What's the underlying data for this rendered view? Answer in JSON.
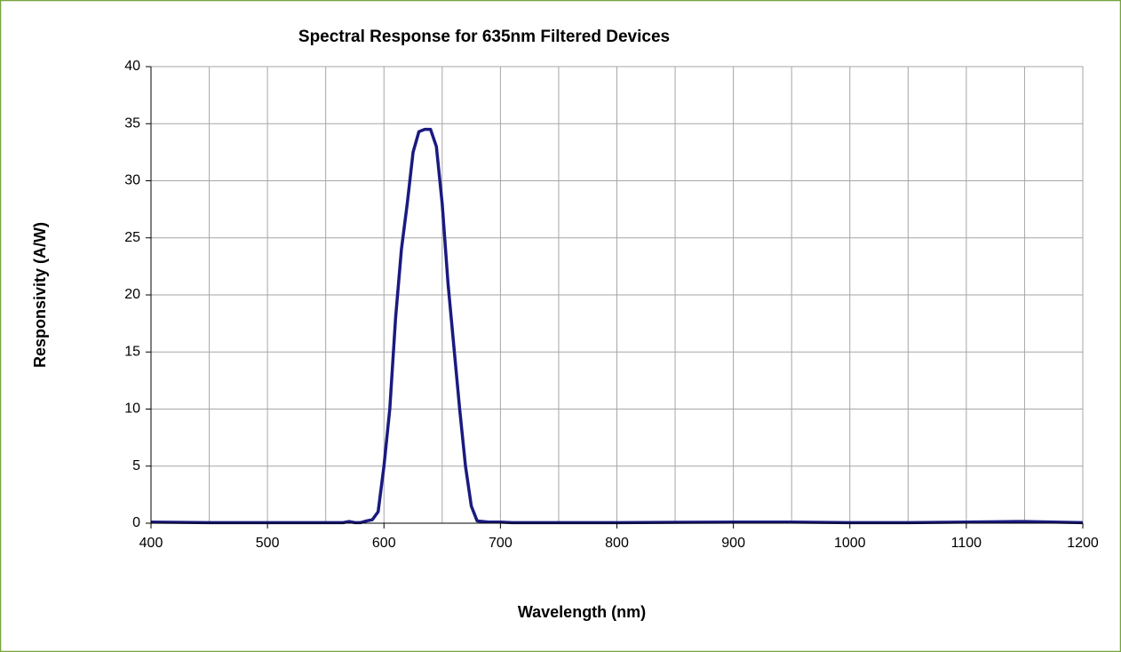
{
  "chart_data": {
    "type": "line",
    "title": "Spectral Response for 635nm Filtered Devices",
    "x_label": "Wavelength (nm)",
    "y_label": "Responsivity (A/W)",
    "x": [
      400,
      450,
      500,
      550,
      565,
      570,
      575,
      580,
      585,
      590,
      595,
      600,
      605,
      610,
      615,
      620,
      625,
      630,
      635,
      640,
      645,
      650,
      655,
      660,
      665,
      670,
      675,
      680,
      690,
      700,
      710,
      800,
      900,
      950,
      1000,
      1050,
      1100,
      1150,
      1200
    ],
    "series": [
      {
        "name": "Responsivity",
        "color": "#1a1a80",
        "values": [
          0.1,
          0.05,
          0.05,
          0.05,
          0.05,
          0.15,
          0.05,
          0.05,
          0.2,
          0.3,
          1,
          5,
          10,
          18,
          24,
          28,
          32.5,
          34.3,
          34.5,
          34.5,
          33,
          28,
          21,
          15.5,
          10,
          5,
          1.5,
          0.2,
          0.1,
          0.1,
          0.05,
          0.05,
          0.1,
          0.1,
          0.05,
          0.05,
          0.1,
          0.15,
          0.05
        ]
      }
    ],
    "xlim": [
      400,
      1200
    ],
    "xticks": [
      400,
      500,
      600,
      700,
      800,
      900,
      1000,
      1100,
      1200
    ],
    "xminor": [
      450,
      550,
      650,
      750,
      850,
      950,
      1050,
      1150
    ],
    "ylim": [
      0,
      40
    ],
    "yticks": [
      0,
      5,
      10,
      15,
      20,
      25,
      30,
      35,
      40
    ],
    "grid": true
  }
}
